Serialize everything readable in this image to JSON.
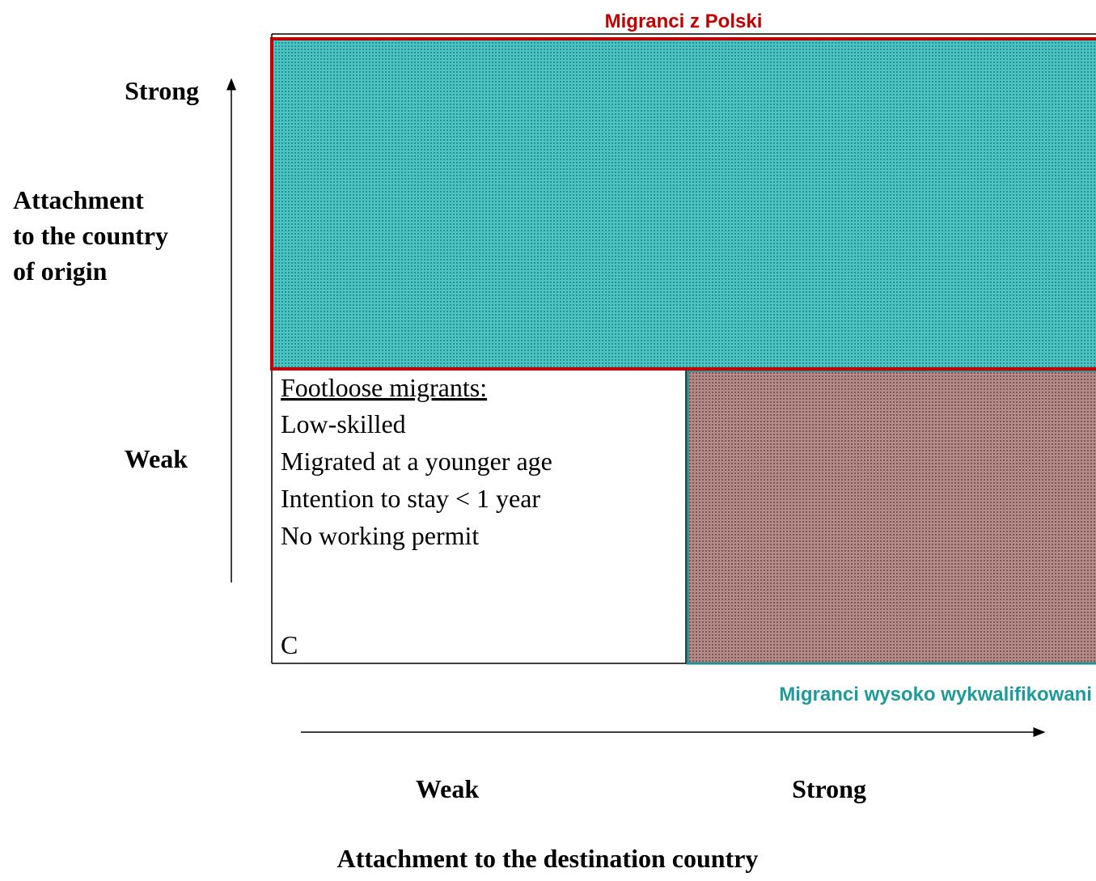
{
  "top_label": "Migranci z Polski",
  "bottom_label": "Migranci wysoko wykwalifikowani",
  "y_axis": {
    "strong": "Strong",
    "label": "Attachment\nto the country\nof origin",
    "weak": "Weak"
  },
  "x_axis": {
    "weak": "Weak",
    "strong": "Strong",
    "label": "Attachment to the destination country"
  },
  "cell_c": {
    "title": "Footloose migrants:",
    "lines": [
      "Low-skilled",
      "Migrated at a younger age",
      "Intention to stay < 1 year",
      "No working permit"
    ],
    "letter": "C"
  }
}
